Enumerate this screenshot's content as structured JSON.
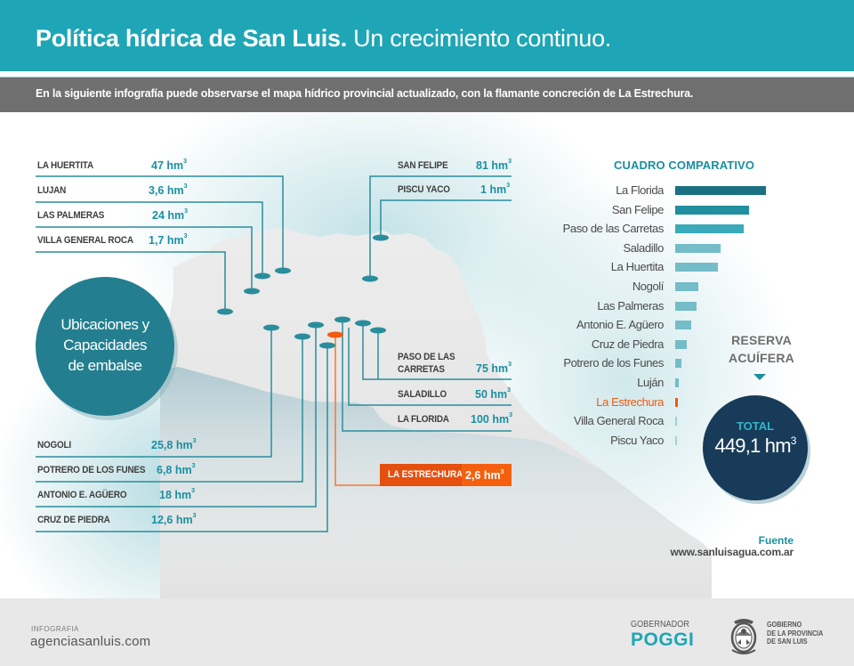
{
  "header": {
    "title_bold": "Política hídrica de San Luis.",
    "title_light": "Un crecimiento continuo.",
    "subtitle": "En la siguiente infografía puede observarse el mapa hídrico provincial actualizado, con la flamante concreción de La Estrechura."
  },
  "map": {
    "circle_title_lines": [
      "Ubicaciones y",
      "Capacidades",
      "de embalse"
    ],
    "unit": "hm",
    "unit_exp": "3",
    "left_top": [
      {
        "name": "LA HUERTITA",
        "value": "47"
      },
      {
        "name": "LUJAN",
        "value": "3,6"
      },
      {
        "name": "LAS PALMERAS",
        "value": "24"
      },
      {
        "name": "VILLA GENERAL ROCA",
        "value": "1,7"
      }
    ],
    "right_top": [
      {
        "name": "SAN FELIPE",
        "value": "81"
      },
      {
        "name": "PISCU YACO",
        "value": "1"
      }
    ],
    "right_mid": [
      {
        "name": "PASO DE LAS",
        "name2": "CARRETAS",
        "value": "75"
      },
      {
        "name": "SALADILLO",
        "value": "50"
      },
      {
        "name": "LA FLORIDA",
        "value": "100"
      }
    ],
    "left_bottom": [
      {
        "name": "NOGOLI",
        "value": "25,8"
      },
      {
        "name": "POTRERO DE LOS FUNES",
        "value": "6,8"
      },
      {
        "name": "ANTONIO E. AGÜERO",
        "value": "18"
      },
      {
        "name": "CRUZ DE PIEDRA",
        "value": "12,6"
      }
    ],
    "highlight": {
      "name": "LA ESTRECHURA",
      "value": "2,6"
    }
  },
  "chart_data": {
    "type": "bar",
    "title": "CUADRO COMPARATIVO",
    "orientation": "horizontal",
    "unit": "hm³",
    "categories": [
      "La Florida",
      "San Felipe",
      "Paso de las Carretas",
      "Saladillo",
      "La Huertita",
      "Nogolí",
      "Las Palmeras",
      "Antonio E. Agüero",
      "Cruz de Piedra",
      "Potrero de los Funes",
      "Luján",
      "La Estrechura",
      "Villa General Roca",
      "Piscu Yaco"
    ],
    "values": [
      100,
      81,
      75,
      50,
      47,
      25.8,
      24,
      18,
      12.6,
      6.8,
      3.6,
      2.6,
      1.7,
      1
    ],
    "highlight": "La Estrechura",
    "colors": {
      "top": "#1b7182",
      "high": "#218f9f",
      "mid": "#3aa9b9",
      "low": "#74bcc8",
      "highlight": "#f25a0f"
    },
    "xlim": [
      0,
      100
    ],
    "grid": false,
    "legend": "none"
  },
  "total": {
    "heading_lines": [
      "RESERVA",
      "ACUÍFERA"
    ],
    "label": "TOTAL",
    "value": "449,1 hm",
    "exp": "3"
  },
  "source": {
    "label": "Fuente",
    "url": "www.sanluisagua.com.ar"
  },
  "footer": {
    "label": "INFOGRAFIA",
    "site": "agenciasanluis.com",
    "gob_label": "GOBERNADOR",
    "gob_name": "POGGI",
    "gov_lines": [
      "GOBIERNO",
      "DE LA PROVINCIA",
      "DE SAN LUIS"
    ]
  }
}
